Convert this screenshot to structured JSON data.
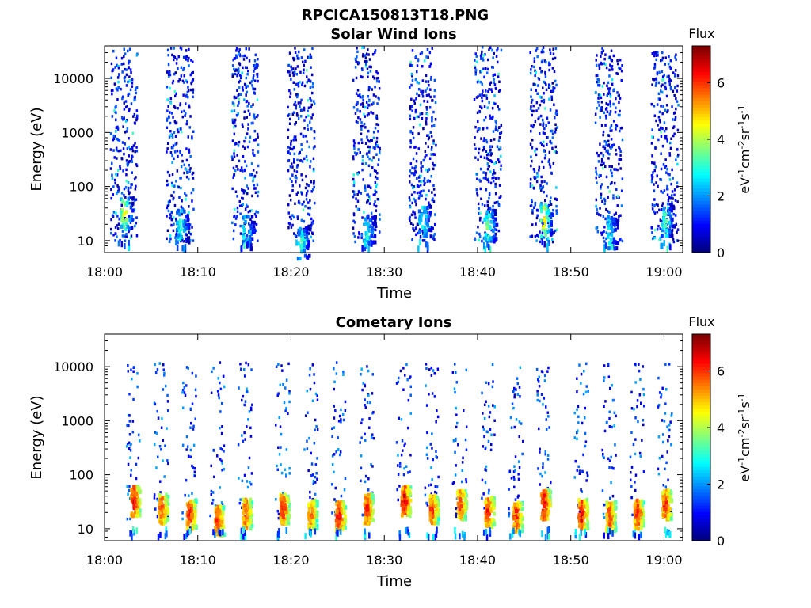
{
  "figure_title": "RPCICA150813T18.PNG",
  "colorbar": {
    "label": "Flux",
    "unit_parts": [
      "eV",
      "-1",
      "cm",
      "-2",
      "sr",
      "-1",
      "s",
      "-1"
    ],
    "ticks": [
      "0",
      "2",
      "4",
      "6"
    ],
    "range": [
      0,
      7.3
    ],
    "colormap": "jet"
  },
  "chart_data": [
    {
      "type": "heatmap",
      "title": "Solar Wind Ions",
      "xlabel": "Time",
      "ylabel": "Energy (eV)",
      "x_ticks": [
        "18:00",
        "18:10",
        "18:20",
        "18:30",
        "18:40",
        "18:50",
        "19:00"
      ],
      "y_ticks": [
        "10",
        "100",
        "1000",
        "10000"
      ],
      "y_scale": "log",
      "xlim": [
        "18:00",
        "19:02"
      ],
      "ylim": [
        6,
        40000
      ],
      "bursts": [
        {
          "t": "18:02",
          "high_flux_energy": 35,
          "peak_flux": 4.8
        },
        {
          "t": "18:08",
          "high_flux_energy": 20,
          "peak_flux": 3.2
        },
        {
          "t": "18:15",
          "high_flux_energy": 15,
          "peak_flux": 3.0
        },
        {
          "t": "18:21",
          "high_flux_energy": 10,
          "peak_flux": 3.2
        },
        {
          "t": "18:28",
          "high_flux_energy": 15,
          "peak_flux": 3.0
        },
        {
          "t": "18:34",
          "high_flux_energy": 25,
          "peak_flux": 3.2
        },
        {
          "t": "18:41",
          "high_flux_energy": 20,
          "peak_flux": 3.8
        },
        {
          "t": "18:47",
          "high_flux_energy": 25,
          "peak_flux": 5.0
        },
        {
          "t": "18:54",
          "high_flux_energy": 15,
          "peak_flux": 3.0
        },
        {
          "t": "19:00",
          "high_flux_energy": 25,
          "peak_flux": 3.5
        }
      ]
    },
    {
      "type": "heatmap",
      "title": "Cometary Ions",
      "xlabel": "Time",
      "ylabel": "Energy (eV)",
      "x_ticks": [
        "18:00",
        "18:10",
        "18:20",
        "18:30",
        "18:40",
        "18:50",
        "19:00"
      ],
      "y_ticks": [
        "10",
        "100",
        "1000",
        "10000"
      ],
      "y_scale": "log",
      "xlim": [
        "18:00",
        "19:02"
      ],
      "ylim": [
        6,
        40000
      ],
      "bursts": [
        {
          "t": "18:03",
          "high_flux_energy": 35,
          "peak_flux": 6.8
        },
        {
          "t": "18:06",
          "high_flux_energy": 25,
          "peak_flux": 6.2
        },
        {
          "t": "18:09",
          "high_flux_energy": 20,
          "peak_flux": 6.5
        },
        {
          "t": "18:12",
          "high_flux_energy": 15,
          "peak_flux": 6.5
        },
        {
          "t": "18:15",
          "high_flux_energy": 20,
          "peak_flux": 6.3
        },
        {
          "t": "18:19",
          "high_flux_energy": 25,
          "peak_flux": 6.5
        },
        {
          "t": "18:22",
          "high_flux_energy": 20,
          "peak_flux": 6.0
        },
        {
          "t": "18:25",
          "high_flux_energy": 18,
          "peak_flux": 6.8
        },
        {
          "t": "18:28",
          "high_flux_energy": 25,
          "peak_flux": 6.5
        },
        {
          "t": "18:32",
          "high_flux_energy": 35,
          "peak_flux": 7.0
        },
        {
          "t": "18:35",
          "high_flux_energy": 25,
          "peak_flux": 6.3
        },
        {
          "t": "18:38",
          "high_flux_energy": 30,
          "peak_flux": 6.2
        },
        {
          "t": "18:41",
          "high_flux_energy": 22,
          "peak_flux": 6.5
        },
        {
          "t": "18:44",
          "high_flux_energy": 18,
          "peak_flux": 6.5
        },
        {
          "t": "18:47",
          "high_flux_energy": 30,
          "peak_flux": 6.8
        },
        {
          "t": "18:51",
          "high_flux_energy": 20,
          "peak_flux": 6.8
        },
        {
          "t": "18:54",
          "high_flux_energy": 18,
          "peak_flux": 6.3
        },
        {
          "t": "18:57",
          "high_flux_energy": 20,
          "peak_flux": 6.5
        },
        {
          "t": "19:00",
          "high_flux_energy": 30,
          "peak_flux": 6.5
        }
      ]
    }
  ]
}
